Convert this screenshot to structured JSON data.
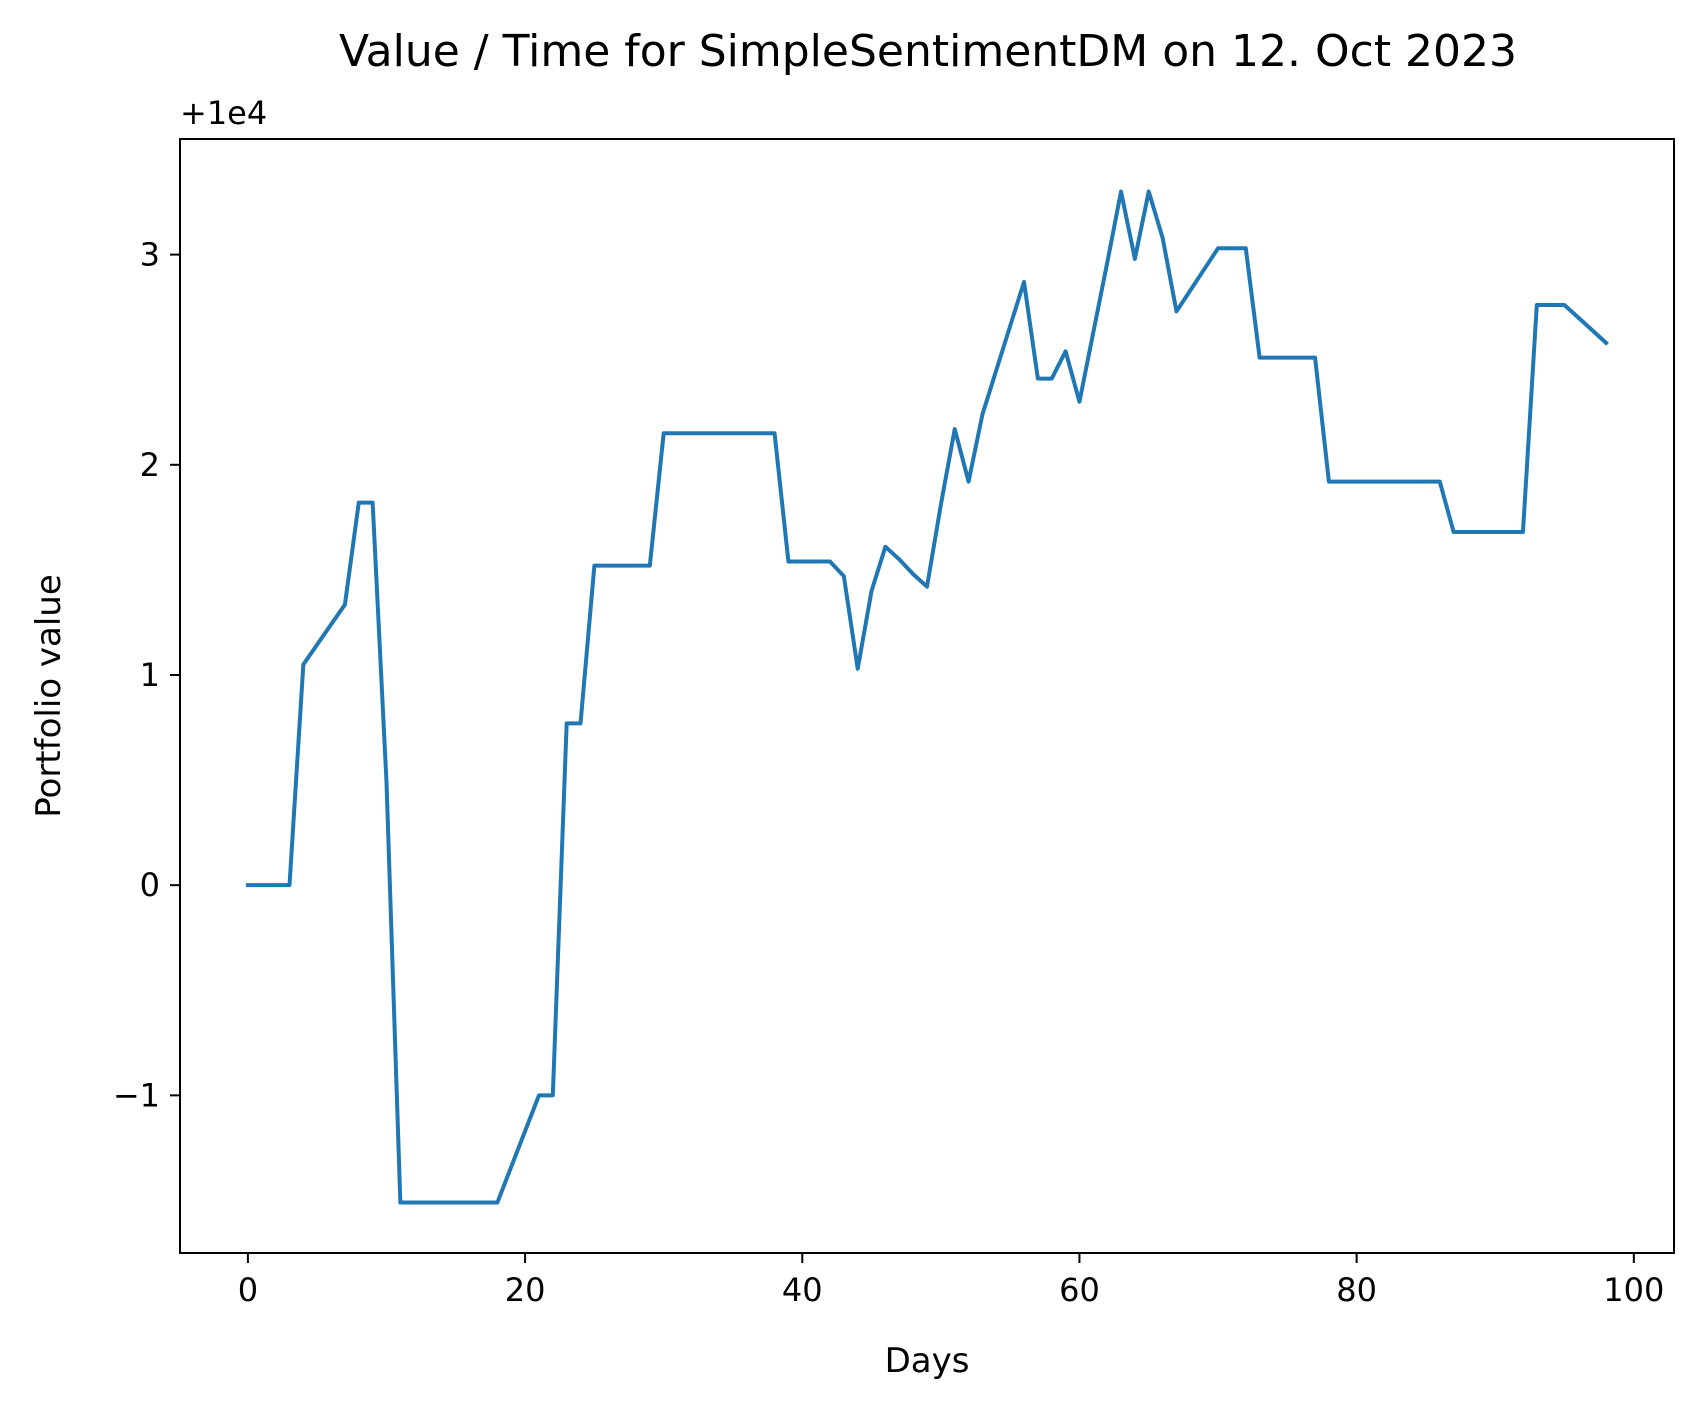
{
  "chart_data": {
    "type": "line",
    "title": "Value / Time for SimpleSentimentDM on 12. Oct 2023",
    "xlabel": "Days",
    "ylabel": "Portfolio value",
    "offset_text": "+1e4",
    "xlim": [
      -4.9,
      102.9
    ],
    "ylim": [
      -1.75,
      3.55
    ],
    "x_ticks": [
      0,
      20,
      40,
      60,
      80,
      100
    ],
    "x_tick_labels": [
      "0",
      "20",
      "40",
      "60",
      "80",
      "100"
    ],
    "y_ticks": [
      -1,
      0,
      1,
      2,
      3
    ],
    "y_tick_labels": [
      "−1",
      "0",
      "1",
      "2",
      "3"
    ],
    "grid": false,
    "line_color": "#1f77b4",
    "series": [
      {
        "x": [
          0,
          1,
          2,
          3,
          4,
          5,
          6,
          7,
          8,
          9,
          10,
          11,
          12,
          13,
          14,
          15,
          16,
          17,
          18,
          19,
          20,
          21,
          22,
          23,
          24,
          25,
          26,
          27,
          28,
          29,
          30,
          31,
          32,
          33,
          34,
          35,
          36,
          37,
          38,
          39,
          40,
          41,
          42,
          43,
          44,
          45,
          46,
          47,
          48,
          49,
          50,
          51,
          52,
          53,
          54,
          55,
          56,
          57,
          58,
          59,
          60,
          61,
          62,
          63,
          64,
          65,
          66,
          67,
          68,
          69,
          70,
          71,
          72,
          73,
          74,
          75,
          76,
          77,
          78,
          79,
          80,
          81,
          82,
          83,
          84,
          85,
          86,
          87,
          88,
          89,
          90,
          91,
          92,
          93,
          94,
          95,
          96,
          97,
          98
        ],
        "y": [
          0,
          0,
          0,
          0,
          1.05,
          1.145,
          1.24,
          1.335,
          1.82,
          1.82,
          0.49,
          -1.51,
          -1.51,
          -1.51,
          -1.51,
          -1.51,
          -1.51,
          -1.51,
          -1.51,
          -1.34,
          -1.17,
          -1.0,
          -1.0,
          0.77,
          0.77,
          1.52,
          1.52,
          1.52,
          1.52,
          1.52,
          2.15,
          2.15,
          2.15,
          2.15,
          2.15,
          2.15,
          2.15,
          2.15,
          2.15,
          1.54,
          1.54,
          1.54,
          1.54,
          1.47,
          1.03,
          1.4,
          1.61,
          1.55,
          1.48,
          1.42,
          1.81,
          2.17,
          1.92,
          2.24,
          2.45,
          2.66,
          2.87,
          2.41,
          2.41,
          2.54,
          2.3,
          2.63,
          2.96,
          3.3,
          2.98,
          3.3,
          3.08,
          2.73,
          2.83,
          2.93,
          3.03,
          3.03,
          3.03,
          2.51,
          2.51,
          2.51,
          2.51,
          2.51,
          1.92,
          1.92,
          1.92,
          1.92,
          1.92,
          1.92,
          1.92,
          1.92,
          1.92,
          1.68,
          1.68,
          1.68,
          1.68,
          1.68,
          1.68,
          2.76,
          2.76,
          2.76,
          2.7,
          2.64,
          2.58
        ]
      }
    ]
  }
}
